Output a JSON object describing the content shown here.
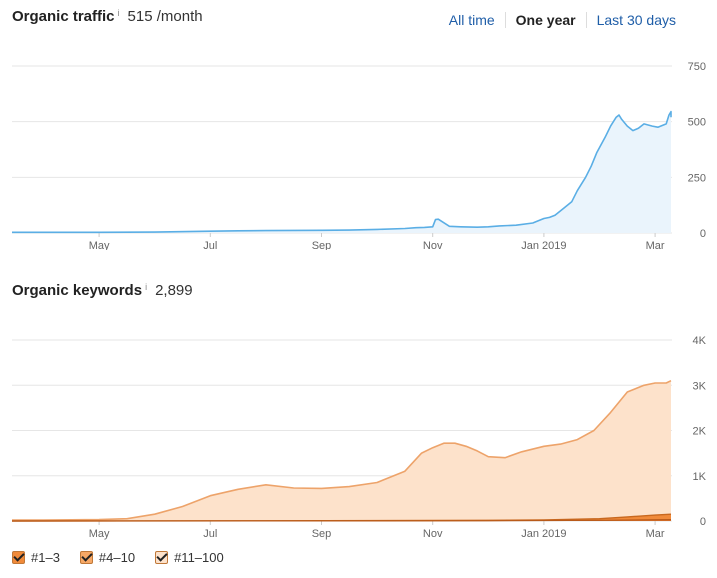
{
  "traffic": {
    "title": "Organic traffic",
    "info": "i",
    "value": "515 /month"
  },
  "range_tabs": [
    {
      "label": "All time",
      "active": false
    },
    {
      "label": "One year",
      "active": true
    },
    {
      "label": "Last 30 days",
      "active": false
    }
  ],
  "keywords": {
    "title": "Organic keywords",
    "info": "i",
    "value": "2,899"
  },
  "legend": [
    {
      "label": "#1–3",
      "checked": true
    },
    {
      "label": "#4–10",
      "checked": true
    },
    {
      "label": "#11–100",
      "checked": true
    }
  ],
  "colors": {
    "traffic_line": "#5aaee5",
    "traffic_fill": "#eaf4fc",
    "kw_line": "#eda36a",
    "kw_fill": "#fde2cb",
    "kw_low_line": "#c8681f",
    "kw_low_fill": "#f08a3a",
    "grid": "#e6e6e6",
    "axis_text": "#666666"
  },
  "chart_data": [
    {
      "type": "area",
      "title": "Organic traffic",
      "x_tick_labels": [
        "May",
        "Jul",
        "Sep",
        "Nov",
        "Jan 2019",
        "Mar"
      ],
      "x_tick_months": [
        1,
        3,
        5,
        7,
        9,
        11
      ],
      "y_ticks": [
        0,
        250,
        500,
        750
      ],
      "ylim": [
        0,
        750
      ],
      "grid": true,
      "series": [
        {
          "x": [
            -0.6,
            0.0,
            1.0,
            2.0,
            3.0,
            3.5,
            4.0,
            5.0,
            5.5,
            6.0,
            6.5,
            6.7,
            6.85,
            7.0,
            7.05,
            7.1,
            7.3,
            7.5,
            7.8,
            8.0,
            8.2,
            8.5,
            8.8,
            8.9,
            9.0,
            9.1,
            9.2,
            9.35,
            9.5,
            9.6,
            9.75,
            9.85,
            9.95,
            10.1,
            10.2,
            10.3,
            10.35,
            10.4,
            10.5,
            10.6,
            10.7,
            10.8,
            10.95,
            11.05,
            11.2,
            11.25,
            11.3,
            11.35,
            11.45
          ],
          "y": [
            3,
            3,
            3,
            4,
            8,
            10,
            11,
            12,
            13,
            16,
            20,
            24,
            25,
            28,
            60,
            62,
            30,
            28,
            26,
            28,
            32,
            35,
            45,
            55,
            65,
            70,
            80,
            110,
            140,
            190,
            250,
            300,
            360,
            430,
            480,
            520,
            530,
            510,
            480,
            460,
            470,
            490,
            480,
            475,
            490,
            530,
            545,
            540,
            520
          ]
        }
      ]
    },
    {
      "type": "area",
      "title": "Organic keywords",
      "x_tick_labels": [
        "May",
        "Jul",
        "Sep",
        "Nov",
        "Jan 2019",
        "Mar"
      ],
      "x_tick_months": [
        1,
        3,
        5,
        7,
        9,
        11
      ],
      "y_tick_labels": [
        "0",
        "1K",
        "2K",
        "3K",
        "4K"
      ],
      "y_ticks": [
        0,
        1000,
        2000,
        3000,
        4000
      ],
      "ylim": [
        0,
        4000
      ],
      "grid": true,
      "legend": [
        "#1–3",
        "#4–10",
        "#11–100"
      ],
      "series": [
        {
          "name": "#11–100",
          "x": [
            -0.6,
            0.0,
            1.0,
            1.5,
            2.0,
            2.5,
            3.0,
            3.5,
            4.0,
            4.5,
            5.0,
            5.5,
            6.0,
            6.5,
            6.8,
            7.0,
            7.2,
            7.4,
            7.6,
            7.8,
            8.0,
            8.3,
            8.6,
            9.0,
            9.3,
            9.6,
            9.9,
            10.2,
            10.5,
            10.8,
            11.0,
            11.2,
            11.45
          ],
          "y": [
            20,
            20,
            30,
            50,
            150,
            320,
            560,
            700,
            800,
            730,
            720,
            760,
            850,
            1100,
            1500,
            1620,
            1720,
            1720,
            1650,
            1550,
            1420,
            1400,
            1530,
            1650,
            1700,
            1800,
            2000,
            2400,
            2850,
            3000,
            3050,
            3050,
            3100
          ]
        },
        {
          "name": "#4–10",
          "x": [
            -0.6,
            4.0,
            8.0,
            9.0,
            10.0,
            10.5,
            11.0,
            11.45
          ],
          "y": [
            0,
            5,
            15,
            25,
            50,
            90,
            130,
            150
          ]
        },
        {
          "name": "#1–3",
          "x": [
            -0.6,
            8.0,
            10.0,
            11.45
          ],
          "y": [
            0,
            5,
            15,
            30
          ]
        }
      ]
    }
  ]
}
